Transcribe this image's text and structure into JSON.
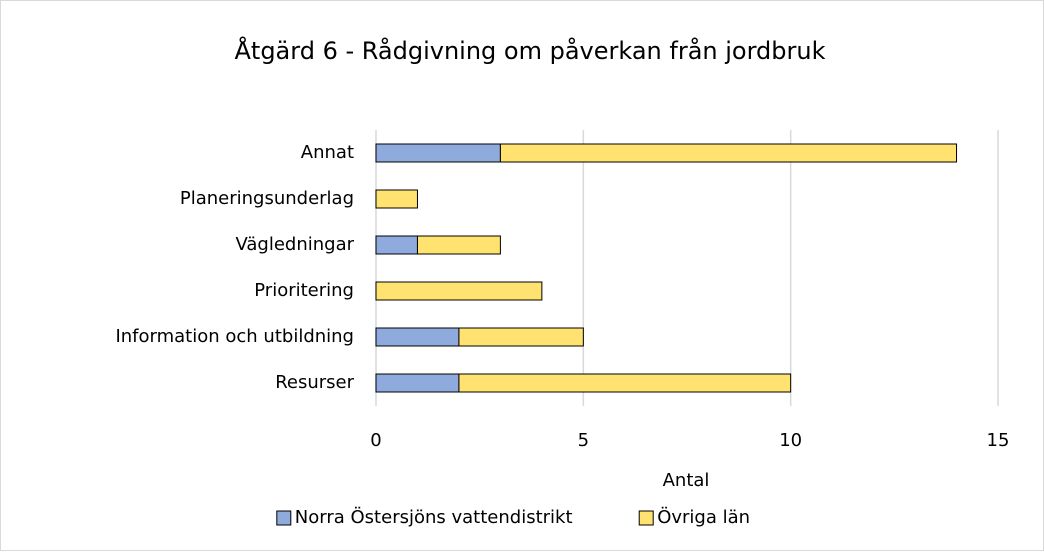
{
  "chart_data": {
    "type": "bar",
    "orientation": "horizontal",
    "stacked": true,
    "title": "Åtgärd 6 - Rådgivning om påverkan från jordbruk",
    "xlabel": "Antal",
    "categories": [
      "Annat",
      "Planeringsunderlag",
      "Vägledningar",
      "Prioritering",
      "Information och utbildning",
      "Resurser"
    ],
    "series": [
      {
        "name": "Norra Östersjöns vattendistrikt",
        "color": "#8faadc",
        "values": [
          3,
          0,
          1,
          0,
          2,
          2
        ]
      },
      {
        "name": "Övriga län",
        "color": "#ffe26f",
        "values": [
          11,
          1,
          2,
          4,
          3,
          8
        ]
      }
    ],
    "xlim": [
      0,
      15
    ],
    "xticks": [
      0,
      5,
      10,
      15
    ],
    "grid": true,
    "legend": "bottom"
  }
}
